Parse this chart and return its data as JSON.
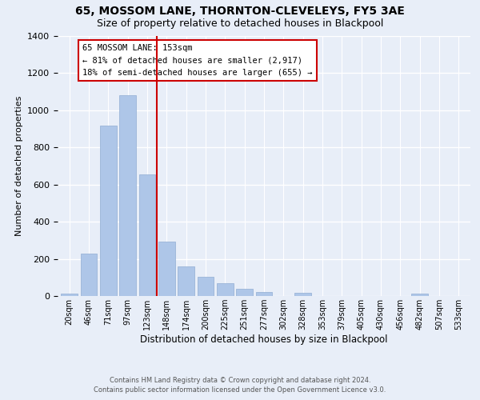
{
  "title": "65, MOSSOM LANE, THORNTON-CLEVELEYS, FY5 3AE",
  "subtitle": "Size of property relative to detached houses in Blackpool",
  "xlabel": "Distribution of detached houses by size in Blackpool",
  "ylabel": "Number of detached properties",
  "bar_labels": [
    "20sqm",
    "46sqm",
    "71sqm",
    "97sqm",
    "123sqm",
    "148sqm",
    "174sqm",
    "200sqm",
    "225sqm",
    "251sqm",
    "277sqm",
    "302sqm",
    "328sqm",
    "353sqm",
    "379sqm",
    "405sqm",
    "430sqm",
    "456sqm",
    "482sqm",
    "507sqm",
    "533sqm"
  ],
  "bar_values": [
    15,
    228,
    918,
    1080,
    655,
    295,
    158,
    105,
    68,
    38,
    22,
    0,
    18,
    0,
    0,
    0,
    0,
    0,
    12,
    0,
    0
  ],
  "bar_color": "#aec6e8",
  "bar_edge_color": "#9bb5d8",
  "ylim": [
    0,
    1400
  ],
  "yticks": [
    0,
    200,
    400,
    600,
    800,
    1000,
    1200,
    1400
  ],
  "property_line_x": 4.5,
  "property_line_color": "#cc0000",
  "annotation_title": "65 MOSSOM LANE: 153sqm",
  "annotation_line1": "← 81% of detached houses are smaller (2,917)",
  "annotation_line2": "18% of semi-detached houses are larger (655) →",
  "annotation_box_color": "#ffffff",
  "annotation_box_edge": "#cc0000",
  "footnote1": "Contains HM Land Registry data © Crown copyright and database right 2024.",
  "footnote2": "Contains public sector information licensed under the Open Government Licence v3.0.",
  "background_color": "#e8eef8",
  "title_fontsize": 10,
  "subtitle_fontsize": 9
}
